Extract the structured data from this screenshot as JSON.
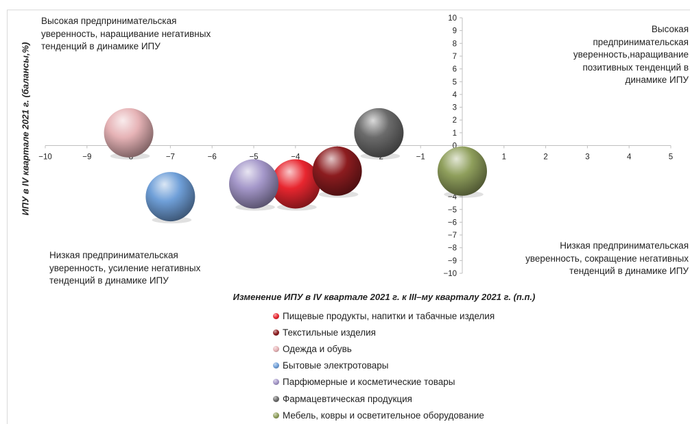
{
  "chart_data": {
    "type": "scatter",
    "xlabel": "Изменение ИПУ в IV квартале 2021 г. к III–му кварталу 2021 г. (п.п.)",
    "ylabel": "ИПУ в IV  квартале 2021 г.  (балансы,%)",
    "xlim": [
      -10,
      5
    ],
    "ylim": [
      -10,
      10
    ],
    "x_ticks": [
      "−10",
      "−9",
      "−8",
      "−7",
      "−6",
      "−5",
      "−4",
      "−3",
      "−2",
      "−1",
      "0",
      "1",
      "2",
      "3",
      "4",
      "5"
    ],
    "y_ticks": [
      "10",
      "9",
      "8",
      "7",
      "6",
      "5",
      "4",
      "3",
      "2",
      "1",
      "0",
      "−1",
      "−2",
      "−3",
      "−4",
      "−5",
      "−6",
      "−7",
      "−8",
      "−9",
      "−10"
    ],
    "legend_position": "bottom",
    "series": [
      {
        "name": "Пищевые продукты, напитки и табачные изделия",
        "x": -4,
        "y": -3,
        "color": "#e8262f"
      },
      {
        "name": "Текстильные изделия",
        "x": -3,
        "y": -2,
        "color": "#8c1c1f"
      },
      {
        "name": "Одежда и обувь",
        "x": -8,
        "y": 1,
        "color": "#e6b3b6"
      },
      {
        "name": "Бытовые электротовары",
        "x": -7,
        "y": -4,
        "color": "#6f9fd8"
      },
      {
        "name": "Парфюмерные и косметические товары",
        "x": -5,
        "y": -3,
        "color": "#a497c9"
      },
      {
        "name": "Фармацевтическая продукция",
        "x": -2,
        "y": 1,
        "color": "#6b6b6b"
      },
      {
        "name": "Мебель, ковры и осветительное оборудование",
        "x": 0,
        "y": -2,
        "color": "#8f9f5c"
      }
    ],
    "quadrant_labels": {
      "top_left": "Высокая предпринимательская\nуверенность, наращивание негативных\nтенденций в динамике ИПУ",
      "top_right": "Высокая\nпредпринимательская\nуверенность,наращивание\nпозитивных тенденций в\nдинамике  ИПУ",
      "bottom_left": "Низкая предпринимательская\nуверенность, усиление негативных\nтенденций в динамике ИПУ",
      "bottom_right": "Низкая предпринимательская\nуверенность, сокращение негативных\nтенденций в динамике ИПУ"
    }
  }
}
